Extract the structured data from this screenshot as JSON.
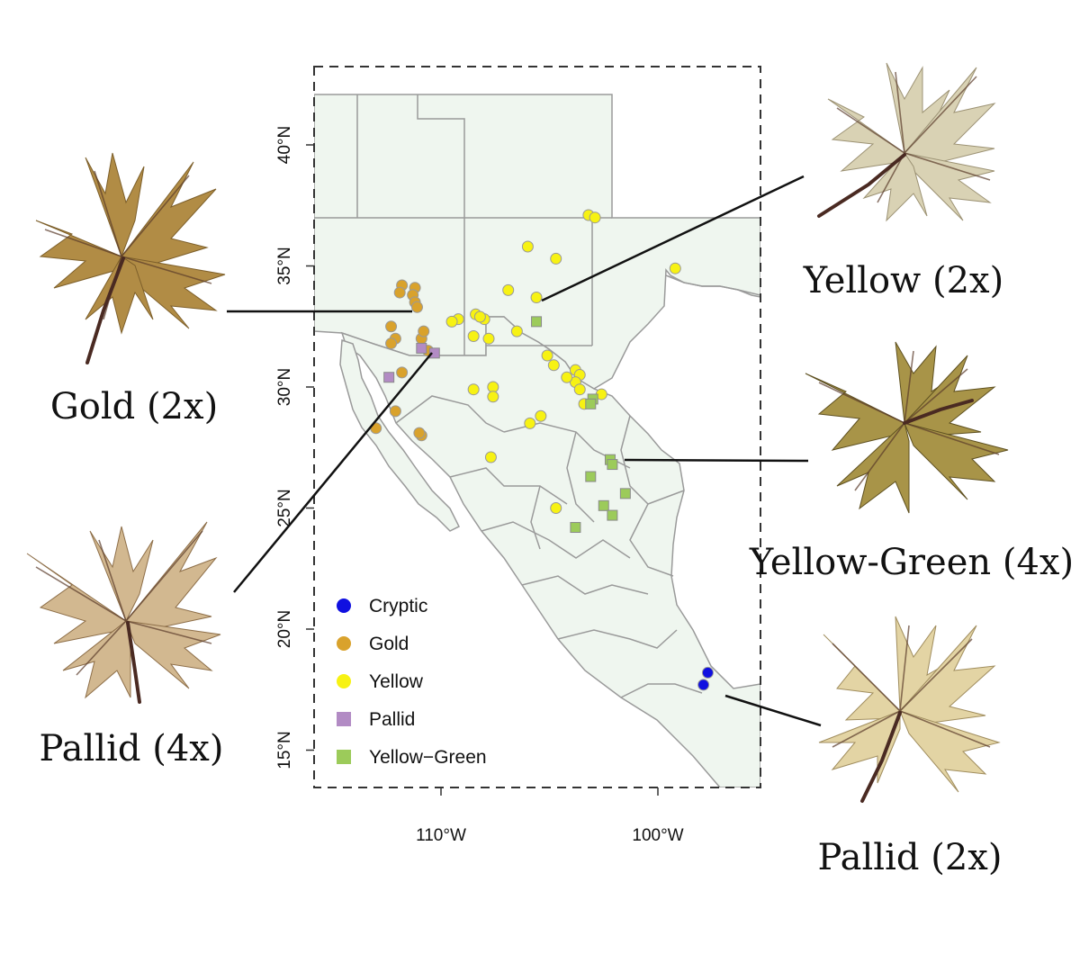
{
  "map": {
    "lat_ticks": [
      {
        "value": 40,
        "label": "40°N"
      },
      {
        "value": 35,
        "label": "35°N"
      },
      {
        "value": 30,
        "label": "30°N"
      },
      {
        "value": 25,
        "label": "25°N"
      },
      {
        "value": 20,
        "label": "20°N"
      },
      {
        "value": 15,
        "label": "15°N"
      }
    ],
    "lon_ticks": [
      {
        "value": -110,
        "label": "110°W"
      },
      {
        "value": -100,
        "label": "100°W"
      }
    ]
  },
  "legend": [
    {
      "key": "cryptic",
      "label": "Cryptic",
      "shape": "circle",
      "color": "#1010e0"
    },
    {
      "key": "gold",
      "label": "Gold",
      "shape": "circle",
      "color": "#d9a22c"
    },
    {
      "key": "yellow",
      "label": "Yellow",
      "shape": "circle",
      "color": "#f7f213"
    },
    {
      "key": "pallid",
      "label": "Pallid",
      "shape": "square",
      "color": "#b28bc4"
    },
    {
      "key": "yellowgreen",
      "label": "Yellow−Green",
      "shape": "square",
      "color": "#9ccb5a"
    }
  ],
  "callouts": {
    "gold": "Gold (2x)",
    "pallid4": "Pallid (4x)",
    "yellow": "Yellow (2x)",
    "yellowgreen": "Yellow-Green (4x)",
    "pallid2": "Pallid (2x)"
  },
  "points": {
    "gold": [
      [
        -111.2,
        34.1
      ],
      [
        -111.8,
        34.2
      ],
      [
        -111.9,
        33.9
      ],
      [
        -111.3,
        33.8
      ],
      [
        -111.2,
        33.5
      ],
      [
        -111.1,
        33.3
      ],
      [
        -112.3,
        32.5
      ],
      [
        -112.1,
        32.0
      ],
      [
        -112.3,
        31.8
      ],
      [
        -110.9,
        32.0
      ],
      [
        -110.8,
        32.3
      ],
      [
        -110.6,
        31.5
      ],
      [
        -111.8,
        30.6
      ],
      [
        -112.1,
        29.0
      ],
      [
        -113.0,
        28.3
      ],
      [
        -110.9,
        28.0
      ],
      [
        -111.0,
        28.1
      ]
    ],
    "yellow": [
      [
        -103.2,
        37.1
      ],
      [
        -102.9,
        37.0
      ],
      [
        -106.0,
        35.8
      ],
      [
        -104.7,
        35.3
      ],
      [
        -99.2,
        34.9
      ],
      [
        -106.9,
        34.0
      ],
      [
        -105.6,
        33.7
      ],
      [
        -108.4,
        33.0
      ],
      [
        -109.2,
        32.8
      ],
      [
        -109.5,
        32.7
      ],
      [
        -108.0,
        32.8
      ],
      [
        -108.2,
        32.9
      ],
      [
        -106.5,
        32.3
      ],
      [
        -107.8,
        32.0
      ],
      [
        -108.5,
        32.1
      ],
      [
        -105.1,
        31.3
      ],
      [
        -104.8,
        30.9
      ],
      [
        -103.8,
        30.7
      ],
      [
        -103.6,
        30.5
      ],
      [
        -103.8,
        30.2
      ],
      [
        -104.2,
        30.4
      ],
      [
        -103.6,
        29.9
      ],
      [
        -102.6,
        29.7
      ],
      [
        -103.4,
        29.3
      ],
      [
        -108.5,
        29.9
      ],
      [
        -107.6,
        30.0
      ],
      [
        -107.6,
        29.6
      ],
      [
        -105.9,
        28.5
      ],
      [
        -105.4,
        28.8
      ],
      [
        -107.7,
        27.1
      ],
      [
        -104.7,
        25.0
      ]
    ],
    "pallid": [
      [
        -110.9,
        31.6
      ],
      [
        -110.3,
        31.4
      ],
      [
        -112.4,
        30.4
      ]
    ],
    "yellowgreen": [
      [
        -105.6,
        32.7
      ],
      [
        -103.0,
        29.5
      ],
      [
        -103.1,
        29.3
      ],
      [
        -102.2,
        27.0
      ],
      [
        -102.1,
        26.8
      ],
      [
        -103.1,
        26.3
      ],
      [
        -101.5,
        25.6
      ],
      [
        -102.5,
        25.1
      ],
      [
        -102.1,
        24.7
      ],
      [
        -103.8,
        24.2
      ]
    ],
    "cryptic": [
      [
        -97.7,
        18.2
      ],
      [
        -97.9,
        17.7
      ]
    ]
  },
  "colors": {
    "land": "#eff6ef",
    "boundary": "#9a9a9a"
  }
}
